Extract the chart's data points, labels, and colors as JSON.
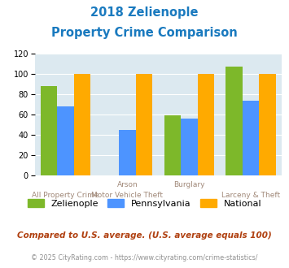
{
  "title_line1": "2018 Zelienople",
  "title_line2": "Property Crime Comparison",
  "title_color": "#1a7abf",
  "zelienople": [
    88,
    0,
    59,
    107
  ],
  "pennsylvania": [
    68,
    45,
    56,
    74
  ],
  "national": [
    100,
    100,
    100,
    100
  ],
  "color_zelienople": "#7db82a",
  "color_pennsylvania": "#4d94ff",
  "color_national": "#ffaa00",
  "ylim": [
    0,
    120
  ],
  "yticks": [
    0,
    20,
    40,
    60,
    80,
    100,
    120
  ],
  "background_color": "#dce9f0",
  "grid_color": "#ffffff",
  "label_color": "#a08878",
  "top_labels": [
    "",
    "Arson",
    "Burglary",
    ""
  ],
  "bot_labels": [
    "All Property Crime",
    "Motor Vehicle Theft",
    "",
    "Larceny & Theft"
  ],
  "legend_labels": [
    "Zelienople",
    "Pennsylvania",
    "National"
  ],
  "footnote": "Compared to U.S. average. (U.S. average equals 100)",
  "footnote_color": "#b04010",
  "footnote2": "© 2025 CityRating.com - https://www.cityrating.com/crime-statistics/",
  "footnote2_color": "#909090",
  "url_color": "#4090c0"
}
